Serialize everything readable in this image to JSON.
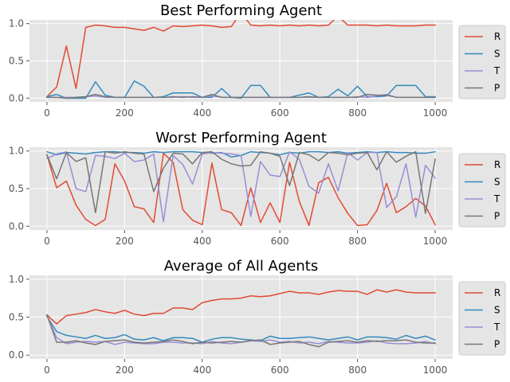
{
  "colors": {
    "R": "#E24A33",
    "S": "#348ABD",
    "T": "#988ED5",
    "P": "#777777",
    "plot_background": "#E5E5E5",
    "grid": "#FFFFFF"
  },
  "chart_data": [
    {
      "type": "line",
      "title": "Best Performing Agent",
      "xlabel": "",
      "ylabel": "",
      "xlim": [
        -45,
        1045
      ],
      "ylim": [
        -0.05,
        1.05
      ],
      "xticks": [
        0,
        200,
        400,
        600,
        800,
        1000
      ],
      "yticks": [
        0.0,
        0.5,
        1.0
      ],
      "grid": true,
      "legend": "outside-right",
      "x": [
        0,
        25,
        50,
        75,
        100,
        125,
        150,
        175,
        200,
        225,
        250,
        275,
        300,
        325,
        350,
        375,
        400,
        425,
        450,
        475,
        500,
        525,
        550,
        575,
        600,
        625,
        650,
        675,
        700,
        725,
        750,
        775,
        800,
        825,
        850,
        875,
        900,
        925,
        950,
        975,
        1000
      ],
      "series": [
        {
          "name": "R",
          "values": [
            0.02,
            0.15,
            0.7,
            0.13,
            0.95,
            0.98,
            0.97,
            0.95,
            0.95,
            0.93,
            0.91,
            0.95,
            0.9,
            0.97,
            0.96,
            0.97,
            0.98,
            0.97,
            0.95,
            0.96,
            1.15,
            0.98,
            0.97,
            0.98,
            0.97,
            0.98,
            0.97,
            0.98,
            0.97,
            0.98,
            1.1,
            0.98,
            0.98,
            0.98,
            0.97,
            0.98,
            0.97,
            0.97,
            0.97,
            0.98,
            0.98
          ]
        },
        {
          "name": "S",
          "values": [
            0.02,
            0.05,
            0.0,
            0.0,
            0.0,
            0.22,
            0.04,
            0.01,
            0.01,
            0.23,
            0.16,
            0.01,
            0.02,
            0.07,
            0.07,
            0.07,
            0.01,
            0.01,
            0.13,
            0.01,
            0.0,
            0.17,
            0.17,
            0.01,
            0.01,
            0.01,
            0.04,
            0.07,
            0.01,
            0.02,
            0.12,
            0.03,
            0.16,
            0.02,
            0.02,
            0.03,
            0.17,
            0.17,
            0.17,
            0.02,
            0.02
          ]
        },
        {
          "name": "T",
          "values": [
            0.01,
            0.01,
            0.01,
            0.01,
            0.02,
            0.03,
            0.01,
            0.01,
            0.01,
            0.01,
            0.01,
            0.01,
            0.01,
            0.01,
            0.02,
            0.01,
            0.01,
            0.03,
            0.01,
            0.01,
            0.01,
            0.01,
            0.01,
            0.01,
            0.01,
            0.01,
            0.01,
            0.01,
            0.01,
            0.01,
            0.01,
            0.01,
            0.02,
            0.01,
            0.03,
            0.05,
            0.01,
            0.01,
            0.01,
            0.01,
            0.01
          ]
        },
        {
          "name": "P",
          "values": [
            0.01,
            0.01,
            0.0,
            0.01,
            0.02,
            0.05,
            0.02,
            0.01,
            0.01,
            0.01,
            0.01,
            0.01,
            0.01,
            0.02,
            0.01,
            0.02,
            0.01,
            0.05,
            0.01,
            0.01,
            0.01,
            0.01,
            0.01,
            0.01,
            0.01,
            0.01,
            0.01,
            0.02,
            0.01,
            0.01,
            0.01,
            0.01,
            0.01,
            0.05,
            0.04,
            0.04,
            0.01,
            0.01,
            0.01,
            0.01,
            0.01
          ]
        }
      ]
    },
    {
      "type": "line",
      "title": "Worst Performing Agent",
      "xlabel": "",
      "ylabel": "",
      "xlim": [
        -45,
        1045
      ],
      "ylim": [
        -0.05,
        1.05
      ],
      "xticks": [
        0,
        200,
        400,
        600,
        800,
        1000
      ],
      "yticks": [
        0.0,
        0.5,
        1.0
      ],
      "grid": true,
      "legend": "outside-right",
      "x": [
        0,
        25,
        50,
        75,
        100,
        125,
        150,
        175,
        200,
        225,
        250,
        275,
        300,
        325,
        350,
        375,
        400,
        425,
        450,
        475,
        500,
        525,
        550,
        575,
        600,
        625,
        650,
        675,
        700,
        725,
        750,
        775,
        800,
        825,
        850,
        875,
        900,
        925,
        950,
        975,
        1000
      ],
      "series": [
        {
          "name": "R",
          "values": [
            0.95,
            0.51,
            0.6,
            0.28,
            0.09,
            0.01,
            0.09,
            0.83,
            0.6,
            0.26,
            0.23,
            0.05,
            0.97,
            0.85,
            0.22,
            0.08,
            0.02,
            0.84,
            0.22,
            0.18,
            0.01,
            0.51,
            0.05,
            0.31,
            0.05,
            0.85,
            0.33,
            0.01,
            0.58,
            0.65,
            0.38,
            0.17,
            0.01,
            0.02,
            0.21,
            0.57,
            0.18,
            0.26,
            0.37,
            0.27,
            0.02
          ]
        },
        {
          "name": "S",
          "values": [
            0.99,
            0.95,
            0.98,
            0.97,
            0.96,
            0.98,
            0.99,
            0.99,
            0.98,
            0.98,
            0.97,
            0.99,
            0.98,
            0.99,
            0.99,
            0.99,
            0.98,
            0.97,
            0.98,
            0.92,
            0.94,
            0.99,
            0.98,
            0.97,
            0.95,
            0.98,
            0.97,
            0.99,
            0.99,
            0.98,
            0.99,
            0.97,
            0.98,
            0.99,
            0.98,
            0.99,
            0.98,
            0.98,
            0.97,
            0.97,
            0.99
          ]
        },
        {
          "name": "T",
          "values": [
            0.9,
            0.96,
            0.99,
            0.5,
            0.46,
            0.94,
            0.93,
            0.9,
            0.97,
            0.86,
            0.88,
            0.96,
            0.06,
            0.94,
            0.82,
            0.56,
            0.96,
            0.98,
            0.97,
            0.96,
            0.94,
            0.13,
            0.86,
            0.68,
            0.66,
            0.99,
            0.89,
            0.53,
            0.44,
            0.83,
            0.47,
            0.98,
            0.88,
            0.98,
            0.98,
            0.25,
            0.39,
            0.83,
            0.12,
            0.81,
            0.64
          ]
        },
        {
          "name": "P",
          "values": [
            0.95,
            0.63,
            0.98,
            0.86,
            0.91,
            0.18,
            0.99,
            0.97,
            0.99,
            0.97,
            0.96,
            0.46,
            0.77,
            0.97,
            0.96,
            0.83,
            0.98,
            0.99,
            0.89,
            0.83,
            0.8,
            0.81,
            0.99,
            0.97,
            0.93,
            0.54,
            0.98,
            0.95,
            0.87,
            0.98,
            0.97,
            0.95,
            0.97,
            0.98,
            0.75,
            0.99,
            0.85,
            0.93,
            0.99,
            0.17,
            0.89
          ]
        }
      ]
    },
    {
      "type": "line",
      "title": "Average of All Agents",
      "xlabel": "",
      "ylabel": "",
      "xlim": [
        -45,
        1045
      ],
      "ylim": [
        -0.05,
        1.05
      ],
      "xticks": [
        0,
        200,
        400,
        600,
        800,
        1000
      ],
      "yticks": [
        0.0,
        0.5,
        1.0
      ],
      "grid": true,
      "legend": "outside-right",
      "x": [
        0,
        25,
        50,
        75,
        100,
        125,
        150,
        175,
        200,
        225,
        250,
        275,
        300,
        325,
        350,
        375,
        400,
        425,
        450,
        475,
        500,
        525,
        550,
        575,
        600,
        625,
        650,
        675,
        700,
        725,
        750,
        775,
        800,
        825,
        850,
        875,
        900,
        925,
        950,
        975,
        1000
      ],
      "series": [
        {
          "name": "R",
          "values": [
            0.53,
            0.41,
            0.52,
            0.54,
            0.56,
            0.6,
            0.57,
            0.55,
            0.59,
            0.54,
            0.52,
            0.55,
            0.55,
            0.62,
            0.62,
            0.6,
            0.69,
            0.72,
            0.74,
            0.74,
            0.75,
            0.78,
            0.77,
            0.78,
            0.81,
            0.84,
            0.82,
            0.82,
            0.8,
            0.83,
            0.85,
            0.84,
            0.84,
            0.8,
            0.86,
            0.83,
            0.86,
            0.83,
            0.82,
            0.82,
            0.82
          ]
        },
        {
          "name": "S",
          "values": [
            0.51,
            0.31,
            0.26,
            0.24,
            0.22,
            0.26,
            0.22,
            0.23,
            0.27,
            0.21,
            0.2,
            0.23,
            0.19,
            0.23,
            0.23,
            0.22,
            0.17,
            0.21,
            0.23,
            0.23,
            0.21,
            0.2,
            0.19,
            0.25,
            0.22,
            0.22,
            0.23,
            0.24,
            0.22,
            0.2,
            0.22,
            0.24,
            0.2,
            0.24,
            0.24,
            0.23,
            0.21,
            0.26,
            0.22,
            0.25,
            0.2
          ]
        },
        {
          "name": "T",
          "values": [
            0.52,
            0.23,
            0.15,
            0.17,
            0.18,
            0.17,
            0.18,
            0.14,
            0.17,
            0.16,
            0.15,
            0.15,
            0.17,
            0.17,
            0.16,
            0.16,
            0.15,
            0.18,
            0.16,
            0.15,
            0.17,
            0.19,
            0.18,
            0.2,
            0.17,
            0.18,
            0.16,
            0.17,
            0.15,
            0.18,
            0.17,
            0.16,
            0.16,
            0.17,
            0.19,
            0.16,
            0.15,
            0.15,
            0.16,
            0.18,
            0.15
          ]
        },
        {
          "name": "P",
          "values": [
            0.53,
            0.17,
            0.17,
            0.19,
            0.16,
            0.14,
            0.18,
            0.19,
            0.2,
            0.17,
            0.16,
            0.17,
            0.18,
            0.2,
            0.18,
            0.15,
            0.17,
            0.16,
            0.17,
            0.18,
            0.17,
            0.19,
            0.2,
            0.14,
            0.16,
            0.17,
            0.18,
            0.14,
            0.11,
            0.17,
            0.18,
            0.19,
            0.17,
            0.19,
            0.18,
            0.19,
            0.19,
            0.2,
            0.17,
            0.16,
            0.16
          ]
        }
      ]
    }
  ]
}
